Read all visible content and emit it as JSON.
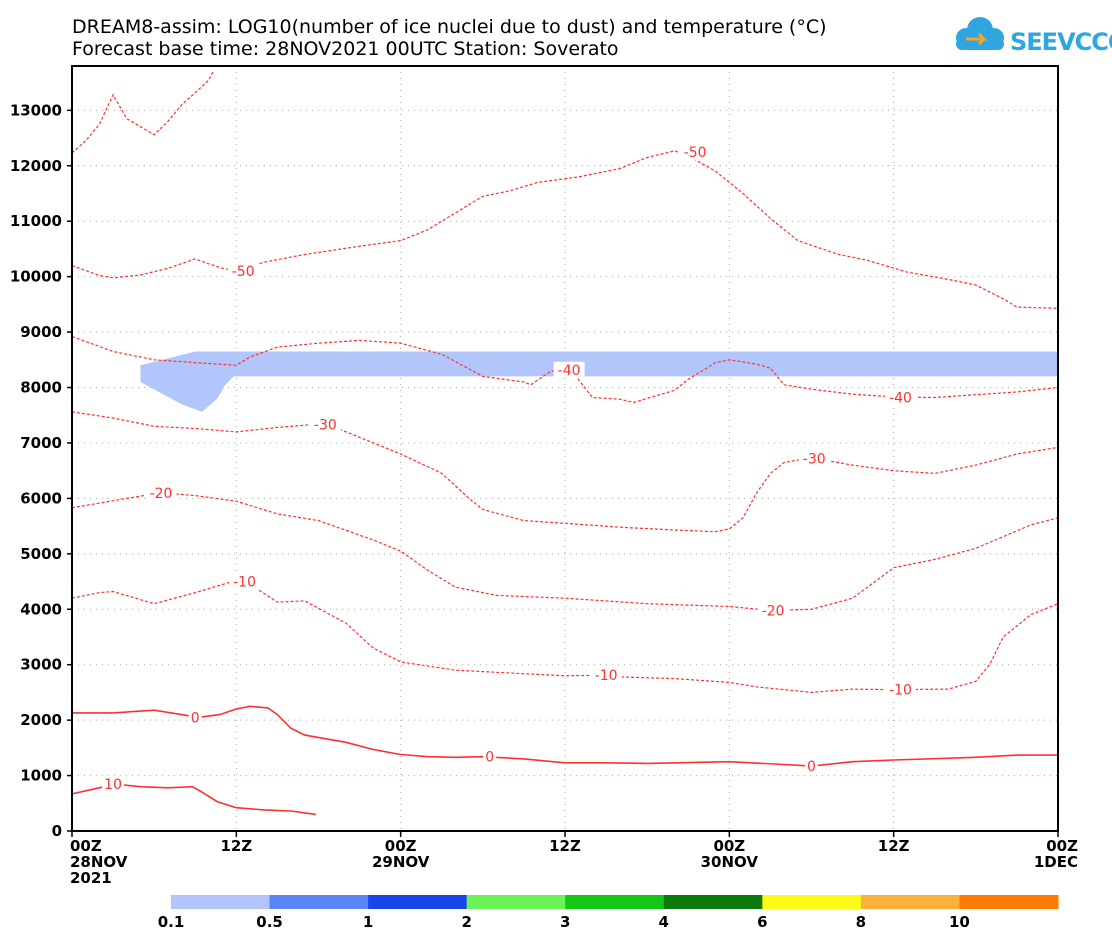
{
  "title_line1": "DREAM8-assim: LOG10(number of ice nuclei due to dust) and temperature (°C)",
  "title_line2": "Forecast base time: 28NOV2021 00UTC  Station: Soverato",
  "logo_text": "SEEVCCC",
  "colors": {
    "contour": "#ff3030",
    "dust": "#b3c6fb",
    "axis": "#000000"
  },
  "chart_data": {
    "type": "contour",
    "x_unit": "hours since 28NOV2021 00UTC",
    "xlim": [
      0,
      72
    ],
    "ylim": [
      0,
      13800
    ],
    "y_ticks": [
      0,
      1000,
      2000,
      3000,
      4000,
      5000,
      6000,
      7000,
      8000,
      9000,
      10000,
      11000,
      12000,
      13000
    ],
    "x_ticks": [
      {
        "x": 0,
        "lines": [
          "00Z",
          "28NOV",
          "2021"
        ]
      },
      {
        "x": 12,
        "lines": [
          "12Z"
        ]
      },
      {
        "x": 24,
        "lines": [
          "00Z",
          "29NOV"
        ]
      },
      {
        "x": 36,
        "lines": [
          "12Z"
        ]
      },
      {
        "x": 48,
        "lines": [
          "00Z",
          "30NOV"
        ]
      },
      {
        "x": 60,
        "lines": [
          "12Z"
        ]
      },
      {
        "x": 72,
        "lines": [
          "00Z",
          "1DEC"
        ]
      }
    ],
    "contours": [
      {
        "level": 10,
        "style": "solid",
        "points": [
          [
            0,
            670
          ],
          [
            2,
            780
          ],
          [
            3,
            850
          ],
          [
            5,
            800
          ],
          [
            7,
            780
          ],
          [
            8.8,
            800
          ],
          [
            9.5,
            700
          ],
          [
            10.6,
            530
          ],
          [
            12,
            420
          ],
          [
            14,
            380
          ],
          [
            16,
            360
          ],
          [
            17.8,
            300
          ]
        ],
        "labels": [
          {
            "text": "10",
            "x": 3,
            "y": 850
          }
        ]
      },
      {
        "level": 0,
        "style": "solid",
        "points": [
          [
            0,
            2130
          ],
          [
            3,
            2130
          ],
          [
            6,
            2180
          ],
          [
            8,
            2100
          ],
          [
            9.2,
            2050
          ],
          [
            10.8,
            2100
          ],
          [
            12,
            2200
          ],
          [
            13,
            2250
          ],
          [
            14.3,
            2220
          ],
          [
            15,
            2100
          ],
          [
            16,
            1850
          ],
          [
            17,
            1730
          ],
          [
            20,
            1600
          ],
          [
            22,
            1470
          ],
          [
            24,
            1380
          ],
          [
            26,
            1340
          ],
          [
            28,
            1330
          ],
          [
            30,
            1340
          ],
          [
            33,
            1300
          ],
          [
            36,
            1230
          ],
          [
            39,
            1230
          ],
          [
            42,
            1220
          ],
          [
            48,
            1250
          ],
          [
            52,
            1200
          ],
          [
            54,
            1170
          ],
          [
            57,
            1250
          ],
          [
            60,
            1280
          ],
          [
            66,
            1330
          ],
          [
            69,
            1370
          ],
          [
            72,
            1370
          ]
        ],
        "labels": [
          {
            "text": "0",
            "x": 9,
            "y": 2050
          },
          {
            "text": "0",
            "x": 30.5,
            "y": 1340
          },
          {
            "text": "0",
            "x": 54,
            "y": 1170
          }
        ]
      },
      {
        "level": -10,
        "style": "dashed",
        "points": [
          [
            0,
            4200
          ],
          [
            2,
            4300
          ],
          [
            3,
            4320
          ],
          [
            6,
            4100
          ],
          [
            9,
            4300
          ],
          [
            12,
            4520
          ],
          [
            13,
            4450
          ],
          [
            15,
            4130
          ],
          [
            17,
            4150
          ],
          [
            20,
            3750
          ],
          [
            22,
            3300
          ],
          [
            24,
            3050
          ],
          [
            28,
            2900
          ],
          [
            32,
            2850
          ],
          [
            36,
            2800
          ],
          [
            38.8,
            2810
          ],
          [
            40,
            2780
          ],
          [
            44,
            2750
          ],
          [
            48,
            2680
          ],
          [
            50,
            2600
          ],
          [
            54,
            2500
          ],
          [
            57,
            2560
          ],
          [
            60,
            2550
          ],
          [
            64,
            2560
          ],
          [
            66,
            2700
          ],
          [
            67,
            3000
          ],
          [
            68,
            3500
          ],
          [
            70,
            3900
          ],
          [
            72,
            4100
          ]
        ],
        "labels": [
          {
            "text": "-10",
            "x": 12.6,
            "y": 4500
          },
          {
            "text": "-10",
            "x": 39,
            "y": 2810
          },
          {
            "text": "-10",
            "x": 60.5,
            "y": 2550
          }
        ]
      },
      {
        "level": -20,
        "style": "dashed",
        "points": [
          [
            0,
            5830
          ],
          [
            4,
            6000
          ],
          [
            6.5,
            6100
          ],
          [
            9,
            6050
          ],
          [
            12,
            5950
          ],
          [
            15,
            5720
          ],
          [
            18,
            5600
          ],
          [
            22,
            5250
          ],
          [
            24,
            5050
          ],
          [
            26,
            4700
          ],
          [
            28,
            4400
          ],
          [
            31,
            4250
          ],
          [
            36,
            4200
          ],
          [
            42,
            4100
          ],
          [
            48,
            4050
          ],
          [
            51,
            3980
          ],
          [
            54,
            4000
          ],
          [
            57,
            4200
          ],
          [
            60,
            4750
          ],
          [
            63,
            4900
          ],
          [
            66,
            5100
          ],
          [
            70,
            5520
          ],
          [
            72,
            5650
          ]
        ],
        "labels": [
          {
            "text": "-20",
            "x": 6.5,
            "y": 6100
          },
          {
            "text": "-20",
            "x": 51.2,
            "y": 3980
          }
        ]
      },
      {
        "level": -30,
        "style": "dashed",
        "points": [
          [
            0,
            7560
          ],
          [
            3,
            7450
          ],
          [
            6,
            7300
          ],
          [
            9,
            7260
          ],
          [
            12,
            7200
          ],
          [
            15,
            7280
          ],
          [
            18,
            7340
          ],
          [
            19,
            7300
          ],
          [
            21,
            7100
          ],
          [
            24,
            6800
          ],
          [
            27,
            6450
          ],
          [
            29,
            6000
          ],
          [
            30,
            5800
          ],
          [
            33,
            5600
          ],
          [
            36,
            5550
          ],
          [
            40,
            5480
          ],
          [
            44,
            5430
          ],
          [
            47,
            5400
          ],
          [
            48,
            5450
          ],
          [
            49,
            5650
          ],
          [
            50,
            6100
          ],
          [
            51,
            6450
          ],
          [
            52,
            6650
          ],
          [
            54,
            6730
          ],
          [
            57,
            6600
          ],
          [
            60,
            6500
          ],
          [
            63,
            6450
          ],
          [
            66,
            6600
          ],
          [
            69,
            6800
          ],
          [
            72,
            6920
          ]
        ],
        "labels": [
          {
            "text": "-30",
            "x": 18.5,
            "y": 7330
          },
          {
            "text": "-30",
            "x": 54.2,
            "y": 6720
          }
        ]
      },
      {
        "level": -40,
        "style": "dashed",
        "points": [
          [
            0,
            8920
          ],
          [
            3,
            8650
          ],
          [
            6,
            8500
          ],
          [
            9,
            8450
          ],
          [
            12,
            8400
          ],
          [
            13,
            8550
          ],
          [
            15,
            8730
          ],
          [
            18,
            8800
          ],
          [
            21,
            8850
          ],
          [
            24,
            8800
          ],
          [
            27,
            8600
          ],
          [
            30,
            8200
          ],
          [
            33,
            8100
          ],
          [
            33.5,
            8050
          ],
          [
            35,
            8300
          ],
          [
            36.5,
            8300
          ],
          [
            38,
            7820
          ],
          [
            40,
            7790
          ],
          [
            41,
            7730
          ],
          [
            44,
            7950
          ],
          [
            45,
            8150
          ],
          [
            47,
            8450
          ],
          [
            48,
            8500
          ],
          [
            50,
            8420
          ],
          [
            51,
            8350
          ],
          [
            52,
            8050
          ],
          [
            54,
            7970
          ],
          [
            57,
            7880
          ],
          [
            60,
            7830
          ],
          [
            63,
            7820
          ],
          [
            66,
            7870
          ],
          [
            69,
            7920
          ],
          [
            72,
            8000
          ]
        ],
        "labels": [
          {
            "text": "-40",
            "x": 36.3,
            "y": 8320
          },
          {
            "text": "-40",
            "x": 60.5,
            "y": 7820
          }
        ]
      },
      {
        "level": -50,
        "style": "dashed",
        "points": [
          [
            0,
            10200
          ],
          [
            2,
            10020
          ],
          [
            3,
            9980
          ],
          [
            5,
            10030
          ],
          [
            7,
            10150
          ],
          [
            9,
            10320
          ],
          [
            10,
            10230
          ],
          [
            11,
            10150
          ],
          [
            12,
            10100
          ],
          [
            14,
            10260
          ],
          [
            17,
            10400
          ],
          [
            21,
            10550
          ],
          [
            24,
            10650
          ],
          [
            26,
            10850
          ],
          [
            28,
            11150
          ],
          [
            30,
            11450
          ],
          [
            32,
            11550
          ],
          [
            34,
            11700
          ],
          [
            37,
            11800
          ],
          [
            40,
            11950
          ],
          [
            42,
            12150
          ],
          [
            44,
            12270
          ],
          [
            45,
            12180
          ],
          [
            47,
            11900
          ],
          [
            49,
            11500
          ],
          [
            51,
            11050
          ],
          [
            53,
            10650
          ],
          [
            56,
            10400
          ],
          [
            58,
            10300
          ],
          [
            61,
            10080
          ],
          [
            64,
            9950
          ],
          [
            66,
            9850
          ],
          [
            68,
            9600
          ],
          [
            69,
            9450
          ],
          [
            72,
            9430
          ]
        ],
        "labels": [
          {
            "text": "-50",
            "x": 12.5,
            "y": 10100
          },
          {
            "text": "-50",
            "x": 45.5,
            "y": 12250
          }
        ]
      },
      {
        "level": -60,
        "style": "dashed",
        "points": [
          [
            0,
            12230
          ],
          [
            1,
            12450
          ],
          [
            2,
            12750
          ],
          [
            3,
            13280
          ],
          [
            4,
            12850
          ],
          [
            6,
            12560
          ],
          [
            7,
            12800
          ],
          [
            8,
            13100
          ],
          [
            9,
            13320
          ],
          [
            10,
            13550
          ],
          [
            10.3,
            13700
          ]
        ],
        "labels": []
      }
    ],
    "dust_regions": [
      {
        "class": "0.1-0.5",
        "points": [
          [
            5,
            8400
          ],
          [
            9,
            8650
          ],
          [
            72,
            8650
          ],
          [
            72,
            8200
          ],
          [
            11.8,
            8200
          ],
          [
            11.2,
            8050
          ],
          [
            10.6,
            7800
          ],
          [
            9.5,
            7560
          ],
          [
            8,
            7700
          ],
          [
            6.5,
            7900
          ],
          [
            5,
            8100
          ]
        ]
      }
    ],
    "colorbar": {
      "labels": [
        "0.1",
        "0.5",
        "1",
        "2",
        "3",
        "4",
        "6",
        "8",
        "10"
      ],
      "colors": [
        "#b3c6fb",
        "#5b84f7",
        "#1a45e8",
        "#6ef25a",
        "#16c617",
        "#0b7a0b",
        "#fbfb17",
        "#fbb13b",
        "#ff7c00"
      ]
    }
  }
}
